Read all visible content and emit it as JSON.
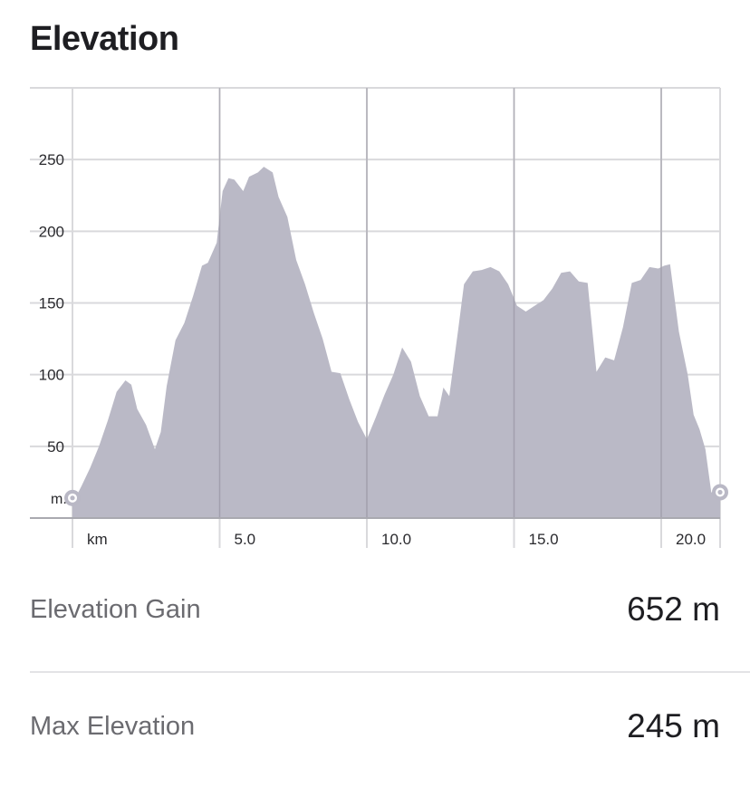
{
  "title": "Elevation",
  "chart_data": {
    "type": "area",
    "x_unit": "km",
    "y_unit": "m.",
    "xlim": [
      0,
      22.0
    ],
    "ylim": [
      0,
      300
    ],
    "x_ticks": [
      5.0,
      10.0,
      15.0,
      20.0
    ],
    "x_tick_labels": [
      "5.0",
      "10.0",
      "15.0",
      "20.0"
    ],
    "y_ticks": [
      50,
      100,
      150,
      200,
      250
    ],
    "y_tick_labels": [
      "50",
      "100",
      "150",
      "200",
      "250"
    ],
    "grid": true,
    "fill_color": "#b9b8c5",
    "grid_color": "#d9d9dc",
    "marker_color": "#b9b8c5",
    "series": [
      {
        "x": [
          0,
          0.3,
          0.6,
          0.9,
          1.2,
          1.5,
          1.8,
          2.0,
          2.2,
          2.5,
          2.8,
          3.0,
          3.2,
          3.5,
          3.8,
          4.1,
          4.4,
          4.6,
          4.9,
          5.1,
          5.3,
          5.5,
          5.8,
          6.0,
          6.3,
          6.5,
          6.8,
          7.0,
          7.3,
          7.6,
          7.9,
          8.2,
          8.5,
          8.8,
          9.1,
          9.4,
          9.7,
          10.0,
          10.3,
          10.6,
          10.9,
          11.2,
          11.5,
          11.8,
          12.1,
          12.4,
          12.6,
          12.8,
          13.1,
          13.3,
          13.6,
          13.9,
          14.2,
          14.5,
          14.8,
          15.1,
          15.4,
          15.7,
          16.0,
          16.3,
          16.6,
          16.9,
          17.2,
          17.5,
          17.8,
          18.1,
          18.4,
          18.7,
          19.0,
          19.3,
          19.6,
          19.9,
          20.1,
          20.3,
          20.6,
          20.9,
          21.1,
          21.3,
          21.5,
          21.7,
          22.0
        ],
        "y": [
          10,
          22,
          35,
          50,
          68,
          88,
          96,
          93,
          76,
          65,
          48,
          60,
          92,
          124,
          136,
          155,
          176,
          178,
          192,
          228,
          237,
          236,
          228,
          238,
          241,
          245,
          241,
          224,
          210,
          180,
          163,
          143,
          125,
          102,
          101,
          83,
          67,
          55,
          70,
          86,
          100,
          119,
          109,
          85,
          71,
          71,
          91,
          85,
          131,
          163,
          172,
          173,
          175,
          172,
          163,
          148,
          144,
          148,
          152,
          160,
          171,
          172,
          165,
          164,
          102,
          112,
          110,
          133,
          164,
          166,
          175,
          174,
          176,
          177,
          130,
          100,
          72,
          62,
          48,
          18,
          17
        ]
      }
    ],
    "start_value": 14,
    "end_value": 18
  },
  "stats": {
    "gain_label": "Elevation Gain",
    "gain_value": "652 m",
    "max_label": "Max Elevation",
    "max_value": "245 m"
  }
}
